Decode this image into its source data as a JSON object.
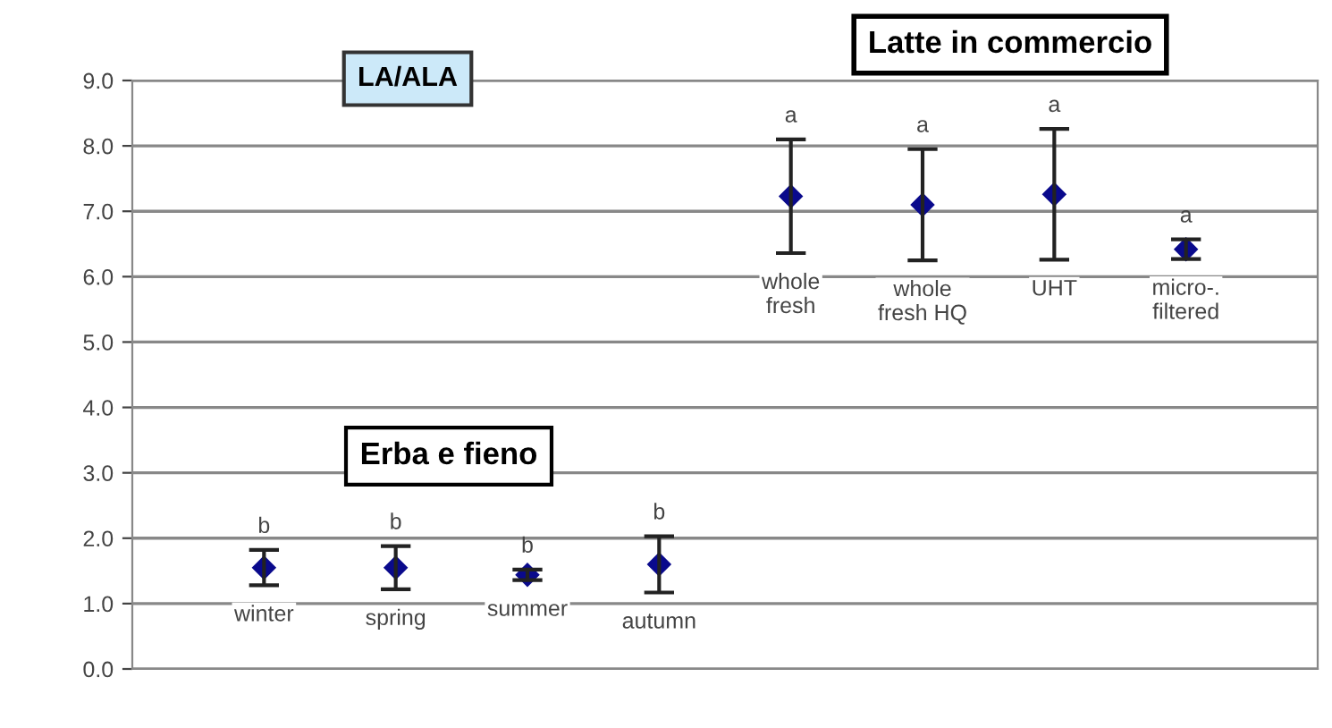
{
  "chart_data": {
    "type": "scatter",
    "title": "LA/ALA",
    "categories": [
      "winter",
      "spring",
      "summer",
      "autumn",
      "whole\nfresh",
      "whole\nfresh HQ",
      "UHT",
      "micro-.\nfiltered"
    ],
    "series": [
      {
        "color": "#0a0a8c",
        "values": [
          1.55,
          1.55,
          1.44,
          1.6,
          7.23,
          7.1,
          7.26,
          6.42
        ],
        "errors": [
          0.27,
          0.33,
          0.08,
          0.43,
          0.87,
          0.85,
          1.0,
          0.15
        ]
      }
    ],
    "ylim": [
      0,
      9
    ],
    "yticks": [
      {
        "value": 0,
        "label": "0.0"
      },
      {
        "value": 1,
        "label": "1.0"
      },
      {
        "value": 2,
        "label": "2.0"
      },
      {
        "value": 3,
        "label": "3.0"
      },
      {
        "value": 4,
        "label": "4.0"
      },
      {
        "value": 5,
        "label": "5.0"
      },
      {
        "value": 6,
        "label": "6.0"
      },
      {
        "value": 7,
        "label": "7.0"
      },
      {
        "value": 8,
        "label": "8.0"
      },
      {
        "value": 9,
        "label": "9.0"
      }
    ],
    "grid": "y",
    "marker": "diamond",
    "tick_labels": "y",
    "annotations": [
      "b",
      "b",
      "b",
      "b",
      "a",
      "a",
      "a",
      "a",
      "Latte in commercio",
      "Erba e fieno"
    ]
  }
}
